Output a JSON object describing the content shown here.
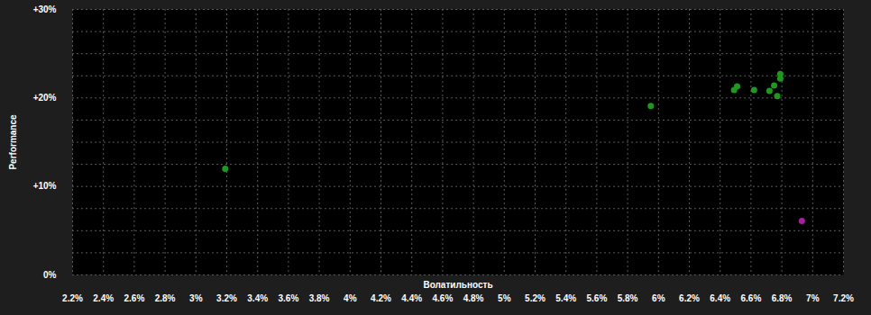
{
  "chart_data": {
    "type": "scatter",
    "x_label": "Волатильность",
    "y_label": "Performance",
    "x": [
      3.19,
      5.95,
      6.49,
      6.51,
      6.62,
      6.72,
      6.75,
      6.77,
      6.79,
      6.79,
      6.93
    ],
    "values": [
      12.0,
      19.1,
      20.9,
      21.3,
      20.9,
      20.8,
      21.4,
      20.2,
      22.7,
      22.2,
      6.1
    ],
    "colors": [
      "#1d9a1d",
      "#1d9a1d",
      "#1d9a1d",
      "#1d9a1d",
      "#1d9a1d",
      "#1d9a1d",
      "#1d9a1d",
      "#1d9a1d",
      "#1d9a1d",
      "#1d9a1d",
      "#a3229a"
    ],
    "xlim": [
      2.2,
      7.2
    ],
    "xticks": [
      {
        "value": 2.2,
        "label": "2.2%"
      },
      {
        "value": 2.4,
        "label": "2.4%"
      },
      {
        "value": 2.6,
        "label": "2.6%"
      },
      {
        "value": 2.8,
        "label": "2.8%"
      },
      {
        "value": 3,
        "label": "3%"
      },
      {
        "value": 3.2,
        "label": "3.2%"
      },
      {
        "value": 3.4,
        "label": "3.4%"
      },
      {
        "value": 3.6,
        "label": "3.6%"
      },
      {
        "value": 3.8,
        "label": "3.8%"
      },
      {
        "value": 4,
        "label": "4%"
      },
      {
        "value": 4.2,
        "label": "4.2%"
      },
      {
        "value": 4.4,
        "label": "4.4%"
      },
      {
        "value": 4.6,
        "label": "4.6%"
      },
      {
        "value": 4.8,
        "label": "4.8%"
      },
      {
        "value": 5,
        "label": "5%"
      },
      {
        "value": 5.2,
        "label": "5.2%"
      },
      {
        "value": 5.4,
        "label": "5.4%"
      },
      {
        "value": 5.6,
        "label": "5.6%"
      },
      {
        "value": 5.8,
        "label": "5.8%"
      },
      {
        "value": 6,
        "label": "6%"
      },
      {
        "value": 6.2,
        "label": "6.2%"
      },
      {
        "value": 6.4,
        "label": "6.4%"
      },
      {
        "value": 6.6,
        "label": "6.6%"
      },
      {
        "value": 6.8,
        "label": "6.8%"
      },
      {
        "value": 7,
        "label": "7%"
      },
      {
        "value": 7.2,
        "label": "7.2%"
      }
    ],
    "ylim": [
      0,
      30
    ],
    "yticks": [
      {
        "value": 0,
        "label": "0%"
      },
      {
        "value": 10,
        "label": "+10%"
      },
      {
        "value": 20,
        "label": "+20%"
      },
      {
        "value": 30,
        "label": "+30%"
      }
    ],
    "grid": true
  }
}
